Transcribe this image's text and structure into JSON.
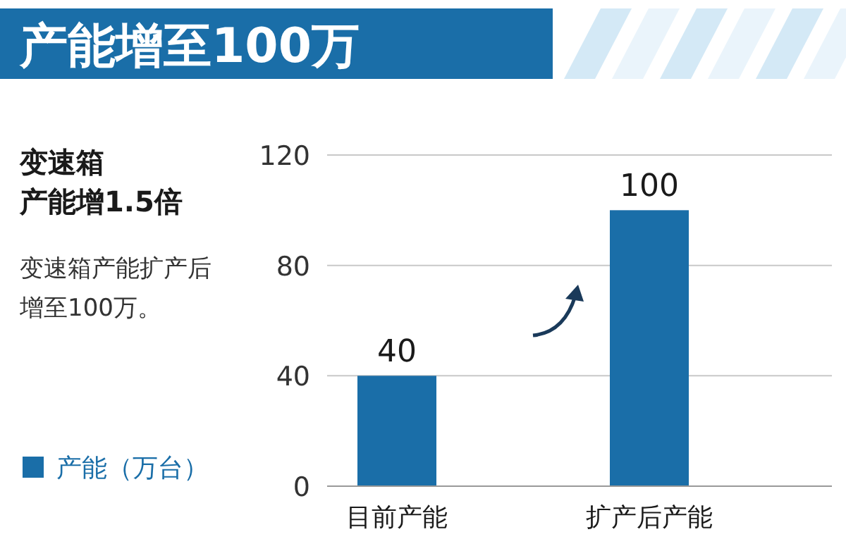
{
  "chart_data": {
    "type": "bar",
    "title": "产能增至100万",
    "subtitle": "变速箱产能增1.5倍",
    "annotations": [
      "变速箱产能扩产后增至100万。"
    ],
    "categories": [
      "目前产能",
      "扩产后产能"
    ],
    "series": [
      {
        "name": "产能（万台）",
        "color": "#1a6ea8",
        "values": [
          40,
          100
        ]
      }
    ],
    "ylim": [
      0,
      120
    ],
    "yticks": [
      0,
      40,
      80,
      120
    ],
    "grid": "y",
    "legend": "left",
    "data_labels": true
  }
}
